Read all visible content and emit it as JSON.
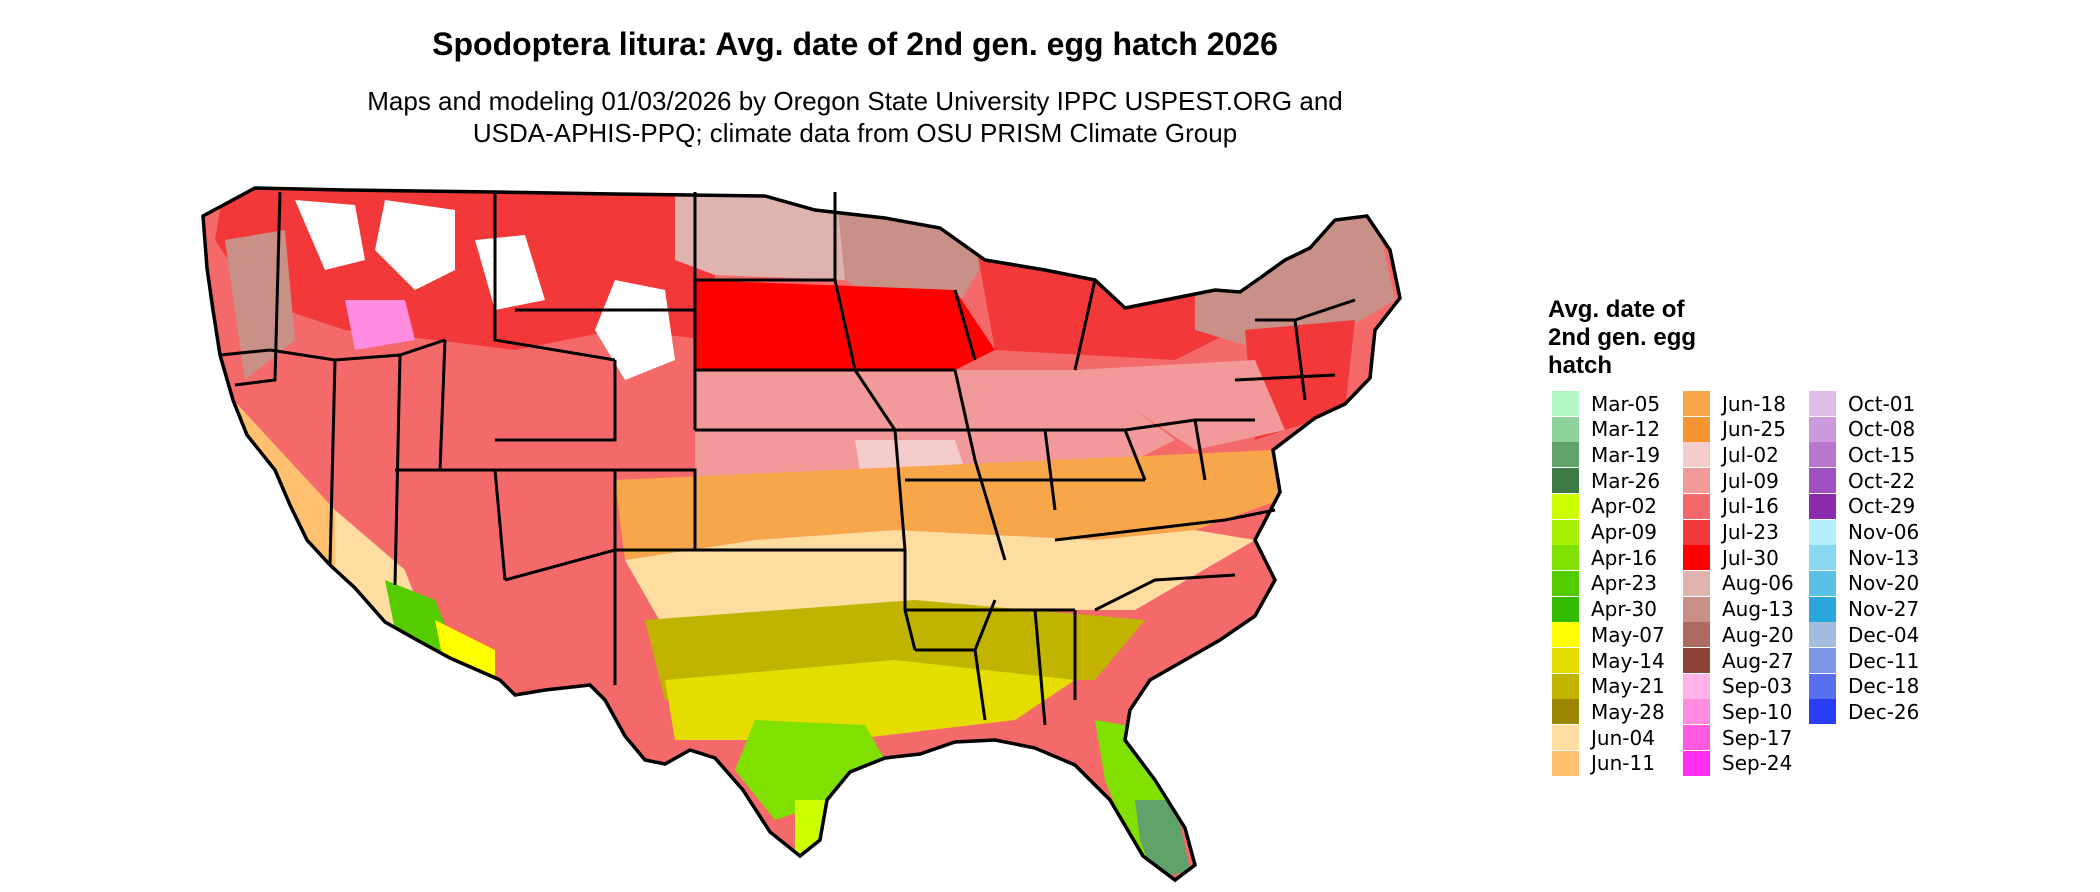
{
  "title": "Spodoptera litura: Avg. date of 2nd gen. egg hatch 2026",
  "subtitle_line1": "Maps and modeling 01/03/2026 by Oregon State University IPPC USPEST.ORG and",
  "subtitle_line2": "USDA-APHIS-PPQ; climate data from OSU PRISM Climate Group",
  "legend": {
    "title_lines": [
      "Avg. date of",
      "2nd gen. egg",
      "hatch"
    ],
    "columns": [
      [
        {
          "label": "Mar-05",
          "color": "#b3f7c5"
        },
        {
          "label": "Mar-12",
          "color": "#8fd39c"
        },
        {
          "label": "Mar-19",
          "color": "#5fa36b"
        },
        {
          "label": "Mar-26",
          "color": "#3d7a45"
        },
        {
          "label": "Apr-02",
          "color": "#ccff00"
        },
        {
          "label": "Apr-09",
          "color": "#a6f000"
        },
        {
          "label": "Apr-16",
          "color": "#80e000"
        },
        {
          "label": "Apr-23",
          "color": "#55cc00"
        },
        {
          "label": "Apr-30",
          "color": "#33bb00"
        },
        {
          "label": "May-07",
          "color": "#ffff00"
        },
        {
          "label": "May-14",
          "color": "#e6dd00"
        },
        {
          "label": "May-21",
          "color": "#c2b300"
        },
        {
          "label": "May-28",
          "color": "#9c8800"
        },
        {
          "label": "Jun-04",
          "color": "#ffdca0"
        },
        {
          "label": "Jun-11",
          "color": "#ffc070"
        }
      ],
      [
        {
          "label": "Jun-18",
          "color": "#f7a64a"
        },
        {
          "label": "Jun-25",
          "color": "#f79432"
        },
        {
          "label": "Jul-02",
          "color": "#f5cccc"
        },
        {
          "label": "Jul-09",
          "color": "#f29999"
        },
        {
          "label": "Jul-16",
          "color": "#f46a6a"
        },
        {
          "label": "Jul-23",
          "color": "#f23838"
        },
        {
          "label": "Jul-30",
          "color": "#ff0000"
        },
        {
          "label": "Aug-06",
          "color": "#e0b4ae"
        },
        {
          "label": "Aug-13",
          "color": "#c89087"
        },
        {
          "label": "Aug-20",
          "color": "#ad6b5f"
        },
        {
          "label": "Aug-27",
          "color": "#8c4437"
        },
        {
          "label": "Sep-03",
          "color": "#ffb3e6"
        },
        {
          "label": "Sep-10",
          "color": "#ff8ce0"
        },
        {
          "label": "Sep-17",
          "color": "#ff5ae0"
        },
        {
          "label": "Sep-24",
          "color": "#ff2ef0"
        }
      ],
      [
        {
          "label": "Oct-01",
          "color": "#e0bde8"
        },
        {
          "label": "Oct-08",
          "color": "#cc99dd"
        },
        {
          "label": "Oct-15",
          "color": "#b877cf"
        },
        {
          "label": "Oct-22",
          "color": "#a050c0"
        },
        {
          "label": "Oct-29",
          "color": "#8a2aad"
        },
        {
          "label": "Nov-06",
          "color": "#b3f0fa"
        },
        {
          "label": "Nov-13",
          "color": "#8ad8f0"
        },
        {
          "label": "Nov-20",
          "color": "#5cc0e6"
        },
        {
          "label": "Nov-27",
          "color": "#2aa6dc"
        },
        {
          "label": "Dec-04",
          "color": "#a3bde0"
        },
        {
          "label": "Dec-11",
          "color": "#7f96e6"
        },
        {
          "label": "Dec-18",
          "color": "#5870ee"
        },
        {
          "label": "Dec-26",
          "color": "#2a3cf5"
        }
      ]
    ]
  }
}
